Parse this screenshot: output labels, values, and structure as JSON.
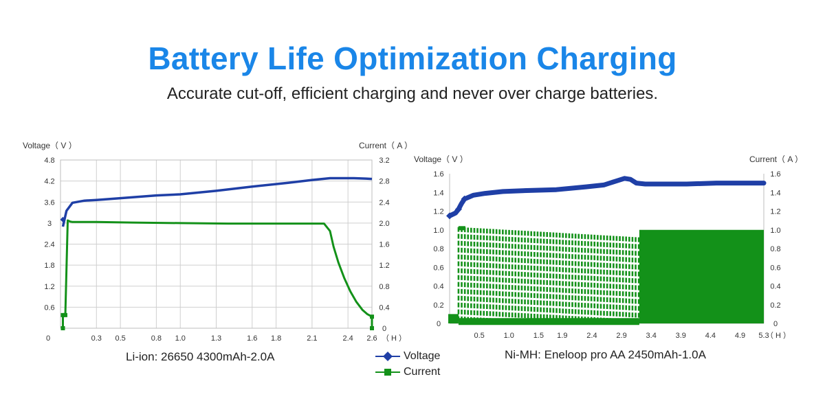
{
  "header": {
    "title": "Battery Life Optimization Charging",
    "subtitle": "Accurate cut-off, efficient charging and never over charge batteries."
  },
  "colors": {
    "title": "#1a86e8",
    "voltage": "#1f3fa6",
    "current": "#139119",
    "grid": "#cfcfcf"
  },
  "legend": {
    "placement": "bottom-center",
    "items": [
      {
        "label": "Voltage",
        "marker": "diamond"
      },
      {
        "label": "Current",
        "marker": "square"
      }
    ]
  },
  "chart_data": [
    {
      "type": "line",
      "caption": "Li-ion: 26650 4300mAh-2.0A",
      "left_axis_label": "Voltage（ V ）",
      "right_axis_label": "Current（ A ）",
      "x_unit": "（ H ）",
      "x_ticks": [
        "0",
        "0.3",
        "0.5",
        "0.8",
        "1.0",
        "1.3",
        "1.6",
        "1.8",
        "2.1",
        "2.4",
        "2.6"
      ],
      "y_left_ticks": [
        "0.6",
        "1.2",
        "1.8",
        "2.4",
        "3",
        "3.6",
        "4.2",
        "4.8"
      ],
      "y_right_ticks": [
        "0",
        "0.4",
        "0.8",
        "1.2",
        "1.6",
        "2.0",
        "2.4",
        "2.8",
        "3.2"
      ],
      "ylim_left": [
        0,
        4.8
      ],
      "ylim_right": [
        0,
        3.2
      ],
      "grid": true,
      "series": [
        {
          "name": "Voltage",
          "axis": "left",
          "x": [
            0.02,
            0.05,
            0.1,
            0.2,
            0.3,
            0.5,
            0.8,
            1.0,
            1.3,
            1.6,
            1.9,
            2.1,
            2.25,
            2.35,
            2.45,
            2.55,
            2.6
          ],
          "y": [
            2.9,
            3.35,
            3.58,
            3.64,
            3.66,
            3.71,
            3.79,
            3.82,
            3.92,
            4.04,
            4.15,
            4.23,
            4.28,
            4.28,
            4.28,
            4.27,
            4.26
          ]
        },
        {
          "name": "Current",
          "axis": "right",
          "x": [
            0.02,
            0.02,
            0.04,
            0.06,
            0.08,
            0.1,
            0.3,
            0.6,
            1.0,
            1.4,
            1.8,
            2.2,
            2.25,
            2.28,
            2.32,
            2.37,
            2.42,
            2.47,
            2.52,
            2.56,
            2.6,
            2.6
          ],
          "y": [
            0.0,
            0.25,
            0.25,
            2.05,
            2.03,
            2.02,
            2.02,
            2.01,
            2.0,
            1.99,
            1.99,
            1.99,
            1.85,
            1.55,
            1.25,
            0.95,
            0.7,
            0.5,
            0.35,
            0.27,
            0.22,
            0.0
          ]
        }
      ]
    },
    {
      "type": "line",
      "caption": "Ni-MH: Eneloop pro AA 2450mAh-1.0A",
      "left_axis_label": "Voltage（ V ）",
      "right_axis_label": "Current（ A ）",
      "x_unit": "（ H ）",
      "x_ticks": [
        "0.5",
        "1.0",
        "1.5",
        "1.9",
        "2.4",
        "2.9",
        "3.4",
        "3.9",
        "4.4",
        "4.9",
        "5.3"
      ],
      "y_left_ticks": [
        "0",
        "0.2",
        "0.4",
        "0.6",
        "0.8",
        "1.0",
        "1.2",
        "1.4",
        "1.6"
      ],
      "y_right_ticks": [
        "0",
        "0.2",
        "0.4",
        "0.6",
        "0.8",
        "1.0",
        "1.2",
        "1.4",
        "1.6"
      ],
      "ylim_left": [
        0,
        1.6
      ],
      "ylim_right": [
        0,
        1.6
      ],
      "grid": false,
      "series": [
        {
          "name": "Voltage",
          "axis": "left",
          "x": [
            0.0,
            0.1,
            0.15,
            0.2,
            0.25,
            0.4,
            0.6,
            0.9,
            1.3,
            1.8,
            2.3,
            2.6,
            2.8,
            2.95,
            3.05,
            3.15,
            3.3,
            3.6,
            4.0,
            4.5,
            5.0,
            5.3
          ],
          "y": [
            1.15,
            1.18,
            1.22,
            1.28,
            1.33,
            1.37,
            1.39,
            1.41,
            1.42,
            1.43,
            1.46,
            1.48,
            1.52,
            1.55,
            1.54,
            1.5,
            1.49,
            1.49,
            1.49,
            1.5,
            1.5,
            1.5
          ]
        },
        {
          "name": "Current",
          "axis": "right",
          "x": [
            0.0,
            0.15,
            0.15,
            3.2,
            3.2,
            5.3
          ],
          "y": [
            0.1,
            0.1,
            1.03,
            0.92,
            1.0,
            1.0
          ],
          "pulsed_until": 3.2,
          "pulse_low": 0.02
        }
      ]
    }
  ]
}
